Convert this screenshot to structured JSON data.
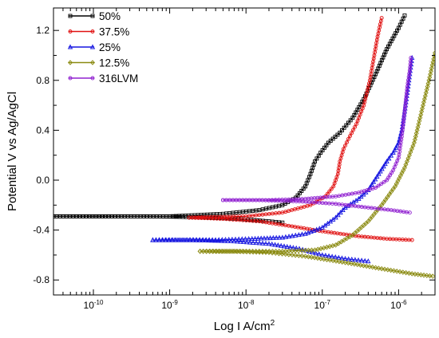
{
  "chart_data": {
    "type": "line",
    "title": "",
    "xlabel": "Log I A/cm",
    "xlabel_superscript": "2",
    "ylabel": "Potential V vs Ag/AgCl",
    "x_scale": "log",
    "xlim": [
      3e-11,
      3e-06
    ],
    "ylim": [
      -0.92,
      1.38
    ],
    "x_ticks": [
      {
        "value": 1e-10,
        "base": "10",
        "exp": "-10"
      },
      {
        "value": 1e-09,
        "base": "10",
        "exp": "-9"
      },
      {
        "value": 1e-08,
        "base": "10",
        "exp": "-8"
      },
      {
        "value": 1e-07,
        "base": "10",
        "exp": "-7"
      },
      {
        "value": 1e-06,
        "base": "10",
        "exp": "-6"
      }
    ],
    "y_ticks": [
      {
        "value": 1.2,
        "label": "1.2"
      },
      {
        "value": 0.8,
        "label": "0.8"
      },
      {
        "value": 0.4,
        "label": "0.4"
      },
      {
        "value": 0.0,
        "label": "0.0"
      },
      {
        "value": -0.4,
        "label": "-0.4"
      },
      {
        "value": -0.8,
        "label": "-0.8"
      }
    ],
    "grid": false,
    "legend_position": "top-left",
    "series": [
      {
        "name": "50%",
        "color": "#000000",
        "marker": "square",
        "cathodic": [
          [
            3e-11,
            -0.29
          ],
          [
            1e-10,
            -0.29
          ],
          [
            5e-10,
            -0.29
          ],
          [
            1e-09,
            -0.292
          ],
          [
            3e-09,
            -0.3
          ],
          [
            8e-09,
            -0.31
          ],
          [
            2e-08,
            -0.33
          ],
          [
            3e-08,
            -0.34
          ]
        ],
        "anodic": [
          [
            3e-11,
            -0.29
          ],
          [
            1e-09,
            -0.29
          ],
          [
            5e-09,
            -0.27
          ],
          [
            1.5e-08,
            -0.24
          ],
          [
            3e-08,
            -0.2
          ],
          [
            4.5e-08,
            -0.14
          ],
          [
            6e-08,
            -0.05
          ],
          [
            7e-08,
            0.05
          ],
          [
            8e-08,
            0.15
          ],
          [
            9.5e-08,
            0.22
          ],
          [
            1.2e-07,
            0.3
          ],
          [
            1.7e-07,
            0.38
          ],
          [
            2.5e-07,
            0.5
          ],
          [
            3.5e-07,
            0.65
          ],
          [
            5e-07,
            0.85
          ],
          [
            7e-07,
            1.05
          ],
          [
            1e-06,
            1.22
          ],
          [
            1.2e-06,
            1.32
          ]
        ]
      },
      {
        "name": "37.5%",
        "color": "#e01010",
        "marker": "circle",
        "cathodic": [
          [
            1.8e-09,
            -0.3
          ],
          [
            5e-09,
            -0.31
          ],
          [
            1.5e-08,
            -0.33
          ],
          [
            4e-08,
            -0.37
          ],
          [
            1e-07,
            -0.41
          ],
          [
            3e-07,
            -0.45
          ],
          [
            7e-07,
            -0.47
          ],
          [
            1.5e-06,
            -0.48
          ]
        ],
        "anodic": [
          [
            1.8e-09,
            -0.3
          ],
          [
            1e-08,
            -0.29
          ],
          [
            3e-08,
            -0.26
          ],
          [
            7e-08,
            -0.2
          ],
          [
            1.1e-07,
            -0.13
          ],
          [
            1.4e-07,
            -0.05
          ],
          [
            1.6e-07,
            0.05
          ],
          [
            1.7e-07,
            0.15
          ],
          [
            1.9e-07,
            0.25
          ],
          [
            2.2e-07,
            0.33
          ],
          [
            2.8e-07,
            0.45
          ],
          [
            3.5e-07,
            0.6
          ],
          [
            4.2e-07,
            0.8
          ],
          [
            4.8e-07,
            1.0
          ],
          [
            5.3e-07,
            1.15
          ],
          [
            6e-07,
            1.3
          ]
        ]
      },
      {
        "name": "25%",
        "color": "#1515e0",
        "marker": "triangle",
        "cathodic": [
          [
            6e-10,
            -0.48
          ],
          [
            2e-09,
            -0.48
          ],
          [
            7e-09,
            -0.49
          ],
          [
            2e-08,
            -0.51
          ],
          [
            5e-08,
            -0.55
          ],
          [
            1e-07,
            -0.6
          ],
          [
            2e-07,
            -0.63
          ],
          [
            4e-07,
            -0.65
          ]
        ],
        "anodic": [
          [
            6e-10,
            -0.48
          ],
          [
            4e-09,
            -0.48
          ],
          [
            1.2e-08,
            -0.47
          ],
          [
            3e-08,
            -0.46
          ],
          [
            6e-08,
            -0.43
          ],
          [
            1e-07,
            -0.38
          ],
          [
            1.5e-07,
            -0.3
          ],
          [
            2e-07,
            -0.22
          ],
          [
            3e-07,
            -0.15
          ],
          [
            4e-07,
            -0.08
          ],
          [
            5.5e-07,
            0.05
          ],
          [
            7e-07,
            0.15
          ],
          [
            8.5e-07,
            0.22
          ],
          [
            1e-06,
            0.3
          ],
          [
            1.1e-06,
            0.4
          ],
          [
            1.2e-06,
            0.55
          ],
          [
            1.3e-06,
            0.7
          ],
          [
            1.4e-06,
            0.85
          ],
          [
            1.5e-06,
            0.98
          ]
        ]
      },
      {
        "name": "12.5%",
        "color": "#8a8a10",
        "marker": "diamond",
        "cathodic": [
          [
            2.5e-09,
            -0.57
          ],
          [
            7e-09,
            -0.57
          ],
          [
            2e-08,
            -0.58
          ],
          [
            6e-08,
            -0.61
          ],
          [
            2e-07,
            -0.66
          ],
          [
            6e-07,
            -0.71
          ],
          [
            1.5e-06,
            -0.75
          ],
          [
            2.8e-06,
            -0.77
          ]
        ],
        "anodic": [
          [
            2.5e-09,
            -0.57
          ],
          [
            1e-08,
            -0.57
          ],
          [
            3e-08,
            -0.57
          ],
          [
            8e-08,
            -0.56
          ],
          [
            1.5e-07,
            -0.52
          ],
          [
            2.5e-07,
            -0.44
          ],
          [
            4e-07,
            -0.33
          ],
          [
            6e-07,
            -0.2
          ],
          [
            9e-07,
            -0.05
          ],
          [
            1.2e-06,
            0.1
          ],
          [
            1.6e-06,
            0.3
          ],
          [
            2e-06,
            0.55
          ],
          [
            2.5e-06,
            0.8
          ],
          [
            3e-06,
            1.02
          ]
        ]
      },
      {
        "name": "316LVM",
        "color": "#9020d0",
        "marker": "circle",
        "cathodic": [
          [
            5e-09,
            -0.16
          ],
          [
            1.5e-08,
            -0.16
          ],
          [
            5e-08,
            -0.17
          ],
          [
            1.5e-07,
            -0.19
          ],
          [
            4e-07,
            -0.22
          ],
          [
            8e-07,
            -0.24
          ],
          [
            1.4e-06,
            -0.26
          ]
        ],
        "anodic": [
          [
            5e-09,
            -0.16
          ],
          [
            2e-08,
            -0.16
          ],
          [
            6e-08,
            -0.15
          ],
          [
            1.5e-07,
            -0.13
          ],
          [
            3e-07,
            -0.1
          ],
          [
            5e-07,
            -0.06
          ],
          [
            7e-07,
            0.0
          ],
          [
            8.5e-07,
            0.08
          ],
          [
            1e-06,
            0.18
          ],
          [
            1.1e-06,
            0.35
          ],
          [
            1.2e-06,
            0.55
          ],
          [
            1.3e-06,
            0.75
          ],
          [
            1.4e-06,
            0.88
          ],
          [
            1.45e-06,
            0.98
          ]
        ]
      }
    ]
  }
}
